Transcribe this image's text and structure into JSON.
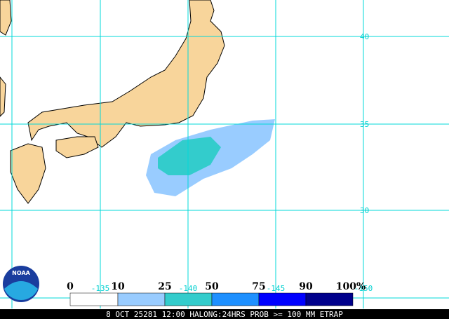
{
  "grid": {
    "lat_labels": [
      "40",
      "35",
      "30"
    ],
    "lon_labels": [
      "-135",
      "-140",
      "-145",
      "-150"
    ]
  },
  "legend": {
    "labels": [
      "0",
      "10",
      "25",
      "50",
      "75",
      "90",
      "100%"
    ]
  },
  "logo": "NOAA",
  "caption": "8 OCT 25281 12:00 HALONG:24HRS PROB >= 100 MM ETRAP"
}
